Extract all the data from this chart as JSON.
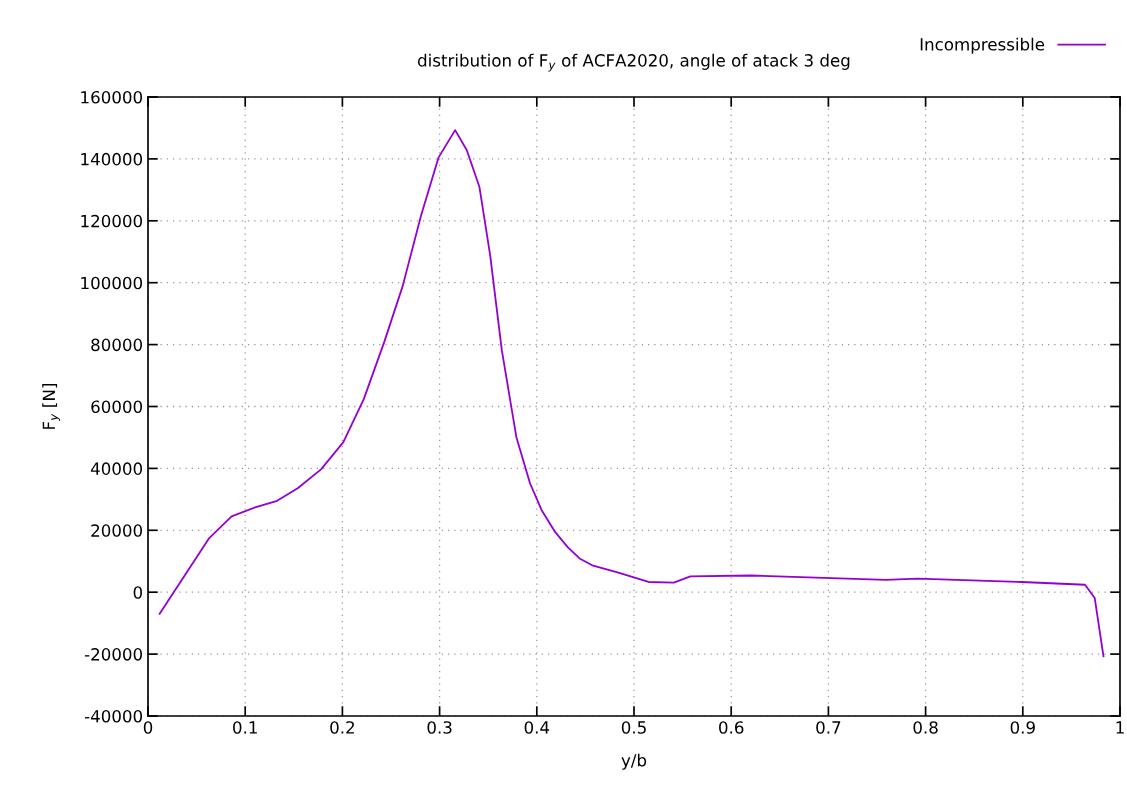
{
  "chart_data": {
    "type": "line",
    "title": "distribution of F$_{y}$ of ACFA2020, angle of atack 3 deg",
    "xlabel": "y/b",
    "ylabel": "F$_{y}$ [N]",
    "xlim": [
      0,
      1
    ],
    "ylim": [
      -40000,
      160000
    ],
    "xticks": [
      0,
      0.1,
      0.2,
      0.3,
      0.4,
      0.5,
      0.6,
      0.7,
      0.8,
      0.9,
      1
    ],
    "yticks": [
      -40000,
      -20000,
      0,
      20000,
      40000,
      60000,
      80000,
      100000,
      120000,
      140000,
      160000
    ],
    "grid": true,
    "legend": "top right",
    "marker": "none",
    "line_style": "solid",
    "series": [
      {
        "name": "Incompressible",
        "color": "#9400d3",
        "x": [
          0.012,
          0.063,
          0.086,
          0.111,
          0.132,
          0.154,
          0.178,
          0.201,
          0.222,
          0.243,
          0.262,
          0.281,
          0.299,
          0.316,
          0.328,
          0.341,
          0.352,
          0.364,
          0.379,
          0.393,
          0.405,
          0.419,
          0.432,
          0.444,
          0.457,
          0.483,
          0.515,
          0.541,
          0.558,
          0.62,
          0.759,
          0.792,
          0.899,
          0.964,
          0.974,
          0.983
        ],
        "values": [
          -7000,
          17500,
          24500,
          27500,
          29400,
          33600,
          39700,
          48500,
          62400,
          80800,
          98900,
          121800,
          140500,
          149300,
          142800,
          130900,
          108900,
          78200,
          50100,
          35200,
          26500,
          19400,
          14500,
          10900,
          8700,
          6400,
          3300,
          3100,
          5100,
          5400,
          4000,
          4400,
          3300,
          2400,
          -1900,
          -20700
        ]
      }
    ]
  }
}
